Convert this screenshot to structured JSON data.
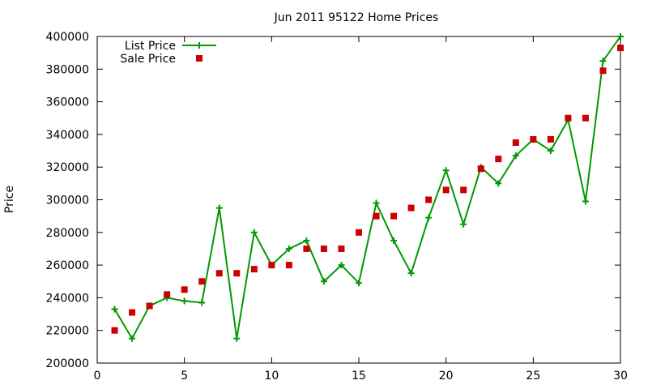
{
  "chart_data": {
    "type": "line",
    "title": "Jun 2011 95122 Home Prices",
    "xlabel": "",
    "ylabel": "Price",
    "xlim": [
      0,
      30
    ],
    "ylim": [
      200000,
      400000
    ],
    "x_ticks": [
      0,
      5,
      10,
      15,
      20,
      25,
      30
    ],
    "y_ticks": [
      200000,
      220000,
      240000,
      260000,
      280000,
      300000,
      320000,
      340000,
      360000,
      380000,
      400000
    ],
    "grid": false,
    "legend_position": "top-left",
    "series": [
      {
        "name": "List Price",
        "style": "line-with-plus-markers",
        "color": "#009900",
        "x": [
          1,
          2,
          3,
          4,
          5,
          6,
          7,
          8,
          9,
          10,
          11,
          12,
          13,
          14,
          15,
          16,
          17,
          18,
          19,
          20,
          21,
          22,
          23,
          24,
          25,
          26,
          27,
          28,
          29,
          30
        ],
        "values": [
          233000,
          215000,
          235000,
          240000,
          238000,
          237000,
          295000,
          215000,
          280000,
          260000,
          270000,
          275000,
          250000,
          260000,
          249000,
          298000,
          275000,
          255000,
          289000,
          318000,
          285000,
          320000,
          310000,
          327000,
          337000,
          330000,
          349000,
          299000,
          385000,
          400000
        ]
      },
      {
        "name": "Sale Price",
        "style": "square-points",
        "color": "#cc0000",
        "x": [
          1,
          2,
          3,
          4,
          5,
          6,
          7,
          8,
          9,
          10,
          11,
          12,
          13,
          14,
          15,
          16,
          17,
          18,
          19,
          20,
          21,
          22,
          23,
          24,
          25,
          26,
          27,
          28,
          29,
          30
        ],
        "values": [
          220000,
          231000,
          235000,
          242000,
          245000,
          250000,
          255000,
          255000,
          257500,
          260000,
          260000,
          270000,
          270000,
          270000,
          280000,
          290000,
          290000,
          295000,
          300000,
          306000,
          306000,
          319000,
          325000,
          335000,
          337000,
          337000,
          350000,
          350000,
          379000,
          393000
        ]
      }
    ]
  }
}
